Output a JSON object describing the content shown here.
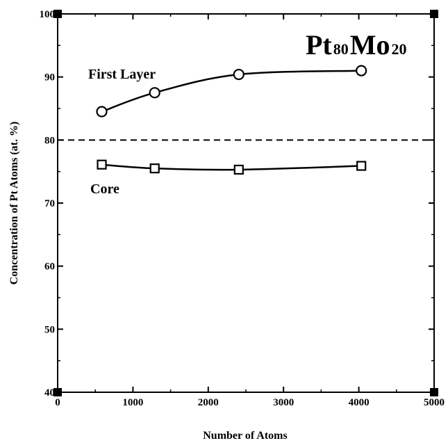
{
  "chart_data": {
    "type": "line",
    "title": "",
    "title_parts": {
      "elem1": "Pt",
      "sub1": "80",
      "elem2": "Mo",
      "sub2": "20"
    },
    "xlabel": "Number of Atoms",
    "ylabel": "Concentration of Pt Atoms (at. %)",
    "xlim": [
      0,
      5000
    ],
    "ylim": [
      40,
      100
    ],
    "xticks": [
      0,
      1000,
      2000,
      3000,
      4000,
      5000
    ],
    "yticks": [
      40,
      50,
      60,
      70,
      80,
      90,
      100
    ],
    "grid": false,
    "reference_line": {
      "y": 80,
      "style": "dashed"
    },
    "series": [
      {
        "name": "First Layer",
        "marker": "circle",
        "x": [
          586,
          1289,
          2406,
          4033
        ],
        "y": [
          84.5,
          87.5,
          90.4,
          91.0
        ]
      },
      {
        "name": "Core",
        "marker": "square",
        "x": [
          586,
          1289,
          2406,
          4033
        ],
        "y": [
          76.1,
          75.5,
          75.3,
          75.9
        ]
      }
    ]
  }
}
